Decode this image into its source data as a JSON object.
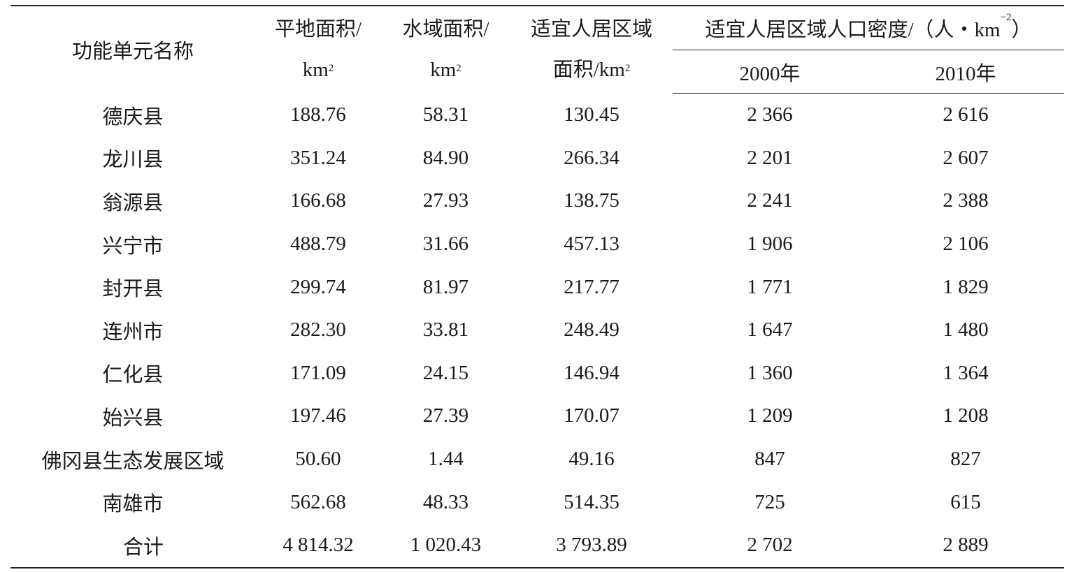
{
  "table": {
    "headers": {
      "name": "功能单元名称",
      "flat_area": {
        "line1": "平地面积/",
        "unit": "km",
        "sup": "2"
      },
      "water_area": {
        "line1": "水域面积/",
        "unit": "km",
        "sup": "2"
      },
      "habitable_area": {
        "line1": "适宜人居区域",
        "line2": "面积/km",
        "sup": "2"
      },
      "density": {
        "label": "适宜人居区域人口密度/（人・km",
        "sup": "−2",
        "close": "）"
      },
      "year_2000": "2000年",
      "year_2010": "2010年"
    },
    "rows": [
      {
        "name": "德庆县",
        "flat": "188.76",
        "water": "58.31",
        "habitable": "130.45",
        "d2000": "2 366",
        "d2010": "2 616"
      },
      {
        "name": "龙川县",
        "flat": "351.24",
        "water": "84.90",
        "habitable": "266.34",
        "d2000": "2 201",
        "d2010": "2 607"
      },
      {
        "name": "翁源县",
        "flat": "166.68",
        "water": "27.93",
        "habitable": "138.75",
        "d2000": "2 241",
        "d2010": "2 388"
      },
      {
        "name": "兴宁市",
        "flat": "488.79",
        "water": "31.66",
        "habitable": "457.13",
        "d2000": "1 906",
        "d2010": "2 106"
      },
      {
        "name": "封开县",
        "flat": "299.74",
        "water": "81.97",
        "habitable": "217.77",
        "d2000": "1 771",
        "d2010": "1 829"
      },
      {
        "name": "连州市",
        "flat": "282.30",
        "water": "33.81",
        "habitable": "248.49",
        "d2000": "1 647",
        "d2010": "1 480"
      },
      {
        "name": "仁化县",
        "flat": "171.09",
        "water": "24.15",
        "habitable": "146.94",
        "d2000": "1 360",
        "d2010": "1 364"
      },
      {
        "name": "始兴县",
        "flat": "197.46",
        "water": "27.39",
        "habitable": "170.07",
        "d2000": "1 209",
        "d2010": "1 208"
      },
      {
        "name": "佛冈县生态发展区域",
        "flat": "50.60",
        "water": "1.44",
        "habitable": "49.16",
        "d2000": "847",
        "d2010": "827"
      },
      {
        "name": "南雄市",
        "flat": "562.68",
        "water": "48.33",
        "habitable": "514.35",
        "d2000": "725",
        "d2010": "615"
      },
      {
        "name": "合计",
        "flat": "4 814.32",
        "water": "1 020.43",
        "habitable": "3 793.89",
        "d2000": "2 702",
        "d2010": "2 889"
      }
    ]
  }
}
